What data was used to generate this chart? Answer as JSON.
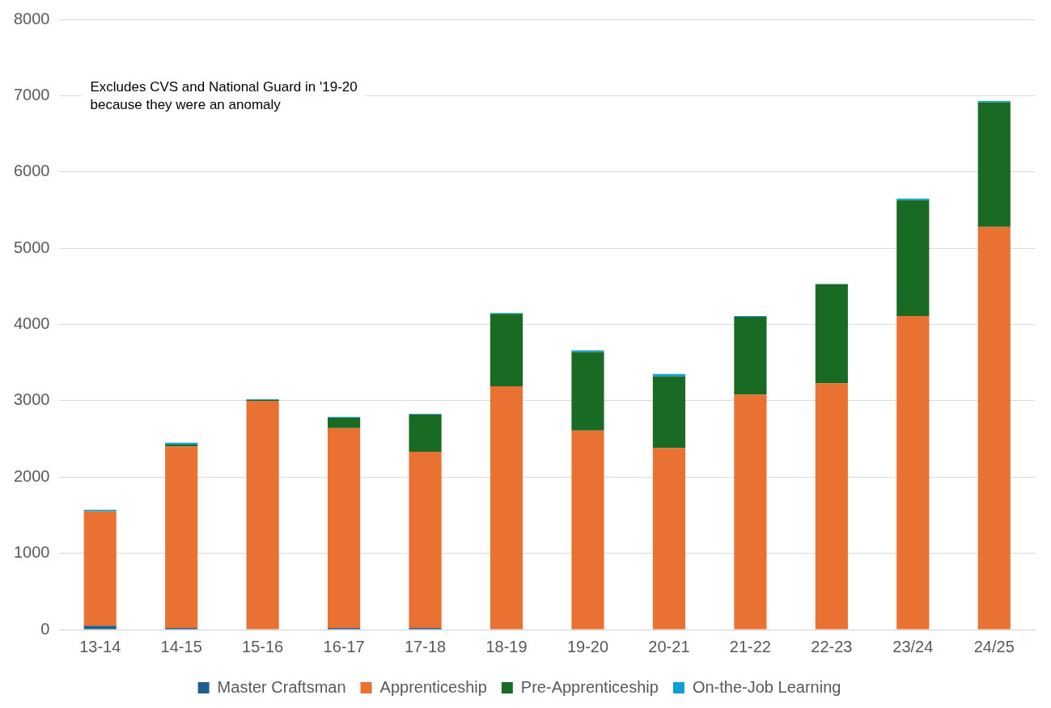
{
  "chart_data": {
    "type": "bar",
    "stacked": true,
    "categories": [
      "13-14",
      "14-15",
      "15-16",
      "16-17",
      "17-18",
      "18-19",
      "19-20",
      "20-21",
      "21-22",
      "22-23",
      "23/24",
      "24/25"
    ],
    "series": [
      {
        "name": "Master Craftsman",
        "color": "#1f5f8b",
        "values": [
          50,
          20,
          0,
          20,
          20,
          0,
          0,
          0,
          0,
          0,
          0,
          0
        ]
      },
      {
        "name": "Apprenticeship",
        "color": "#e97132",
        "values": [
          1500,
          2380,
          3000,
          2620,
          2310,
          3190,
          2610,
          2380,
          3080,
          3230,
          4110,
          5280
        ]
      },
      {
        "name": "Pre-Apprenticeship",
        "color": "#196b24",
        "values": [
          0,
          30,
          10,
          140,
          490,
          950,
          1030,
          940,
          1020,
          1300,
          1520,
          1630
        ]
      },
      {
        "name": "On-the-Job Learning",
        "color": "#0f9ed5",
        "values": [
          20,
          20,
          10,
          10,
          10,
          10,
          20,
          30,
          10,
          null,
          20,
          20
        ]
      }
    ],
    "ylim": [
      0,
      8000
    ],
    "yticks": [
      0,
      1000,
      2000,
      3000,
      4000,
      5000,
      6000,
      7000,
      8000
    ],
    "grid": "y",
    "legend": "bottom",
    "annotations": [
      "Excludes CVS and National Guard in '19-20\nbecause they were an anomaly"
    ]
  }
}
